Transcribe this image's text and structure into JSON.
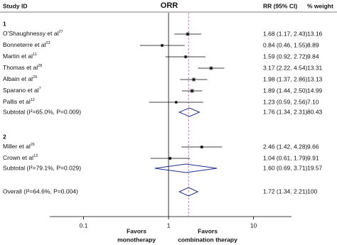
{
  "chart_data": {
    "type": "forest",
    "title": "ORR",
    "columns": {
      "study": "Study ID",
      "ci": "RR (95% CI)",
      "weight": "% weight"
    },
    "log_x": true,
    "xlim": [
      0.04,
      28
    ],
    "xticks": [
      0.1,
      1,
      10
    ],
    "favors_left": [
      "Favors",
      "monotherapy"
    ],
    "favors_right": [
      "Favors",
      "combination therapy"
    ],
    "point_color": "#404040",
    "diamond_color": "#1f2d8a",
    "overall_line_color": "#d966a6",
    "groups": [
      {
        "label": "1",
        "studies": [
          {
            "name": "O’Shaughnessy et al",
            "ref": "27",
            "rr": 1.68,
            "lo": 1.17,
            "hi": 2.43,
            "ci_label": "1.68 (1.17, 2.43)",
            "weight": 13.16,
            "weight_label": "13.16"
          },
          {
            "name": "Bonneterre et al",
            "ref": "23",
            "rr": 0.84,
            "lo": 0.46,
            "hi": 1.55,
            "ci_label": "0.84 (0.46, 1.55)",
            "weight": 8.89,
            "weight_label": "8.89"
          },
          {
            "name": "Martin et al",
            "ref": "11",
            "rr": 1.59,
            "lo": 0.92,
            "hi": 2.72,
            "ci_label": "1.59 (0.92, 2.72)",
            "weight": 9.84,
            "weight_label": "9.84"
          },
          {
            "name": "Thomas et al",
            "ref": "28",
            "rr": 3.17,
            "lo": 2.22,
            "hi": 4.54,
            "ci_label": "3.17 (2.22, 4.54)",
            "weight": 13.31,
            "weight_label": "13.31"
          },
          {
            "name": "Albain et al",
            "ref": "29",
            "rr": 1.98,
            "lo": 1.37,
            "hi": 2.86,
            "ci_label": "1.98 (1.37, 2.86)",
            "weight": 13.13,
            "weight_label": "13.13"
          },
          {
            "name": "Sparano et al",
            "ref": "7",
            "rr": 1.89,
            "lo": 1.44,
            "hi": 2.5,
            "ci_label": "1.89 (1.44, 2.50)",
            "weight": 14.99,
            "weight_label": "14.99"
          },
          {
            "name": "Pallis et al",
            "ref": "12",
            "rr": 1.23,
            "lo": 0.59,
            "hi": 2.56,
            "ci_label": "1.23 (0.59, 2.56)",
            "weight": 7.1,
            "weight_label": "7.10"
          }
        ],
        "subtotal": {
          "label": "Subtotal (I²=65.0%, P=0.009)",
          "rr": 1.76,
          "lo": 1.34,
          "hi": 2.31,
          "ci_label": "1.76 (1.34, 2.31)",
          "weight": 80.43,
          "weight_label": "80.43"
        }
      },
      {
        "label": "2",
        "studies": [
          {
            "name": "Miller et al",
            "ref": "26",
            "rr": 2.46,
            "lo": 1.42,
            "hi": 4.28,
            "ci_label": "2.46 (1.42, 4.28)",
            "weight": 9.66,
            "weight_label": "9.66"
          },
          {
            "name": "Crown et al",
            "ref": "13",
            "rr": 1.04,
            "lo": 0.61,
            "hi": 1.79,
            "ci_label": "1.04 (0.61, 1.79)",
            "weight": 9.91,
            "weight_label": "9.91"
          }
        ],
        "subtotal": {
          "label": "Subtotal (I²=79.1%, P=0.029)",
          "rr": 1.6,
          "lo": 0.69,
          "hi": 3.71,
          "ci_label": "1.60 (0.69, 3.71)",
          "weight": 19.57,
          "weight_label": "19.57"
        }
      }
    ],
    "overall": {
      "label": "Overall (I²=64.6%, P=0.004)",
      "rr": 1.72,
      "lo": 1.34,
      "hi": 2.21,
      "ci_label": "1.72 (1.34, 2.21)",
      "weight": 100,
      "weight_label": "100"
    }
  }
}
